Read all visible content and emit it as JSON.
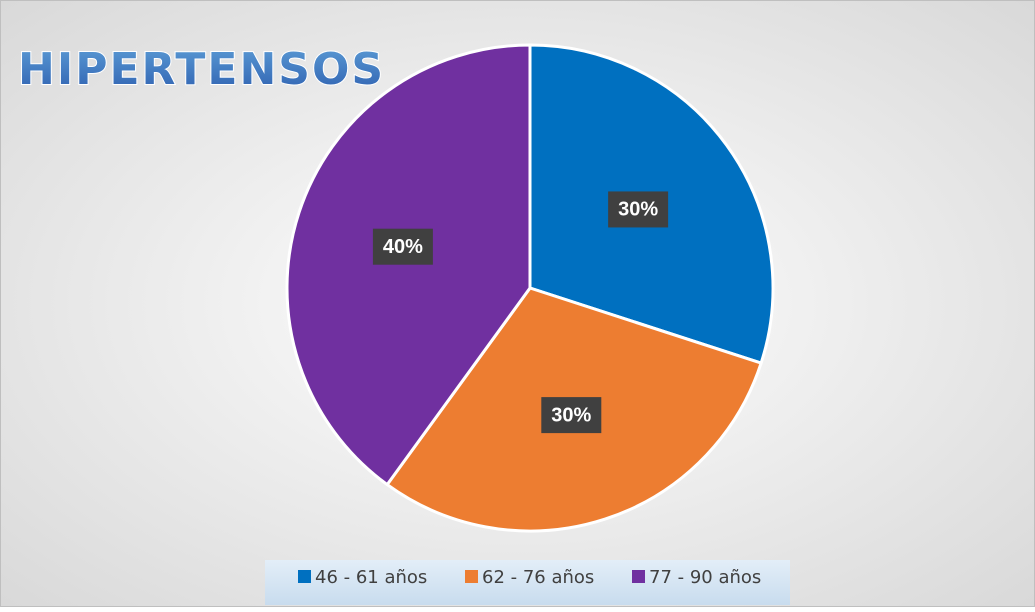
{
  "chart_data": {
    "type": "pie",
    "title": "HIPERTENSOS",
    "categories": [
      "46 - 61 años",
      "62 - 76 años",
      "77 - 90 años"
    ],
    "values": [
      30,
      30,
      40
    ],
    "value_labels": [
      "30%",
      "30%",
      "40%"
    ],
    "colors": [
      "#0070c0",
      "#ed7d31",
      "#7030a0"
    ],
    "legend": "bottom"
  }
}
